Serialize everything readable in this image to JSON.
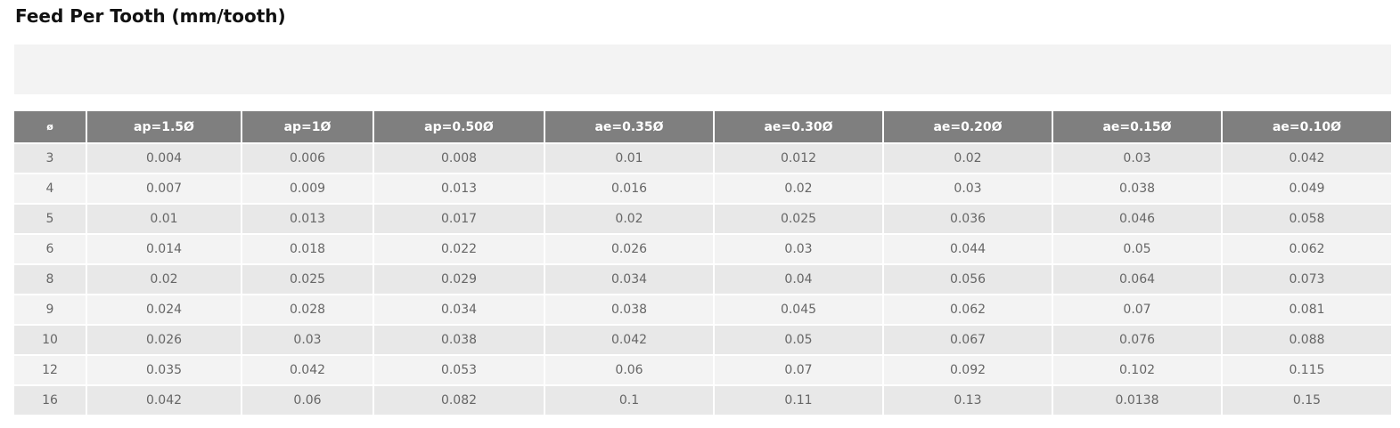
{
  "title": "Feed Per Tooth (mm/tooth)",
  "table": {
    "headers": [
      "ø",
      "ap=1.5Ø",
      "ap=1Ø",
      "ap=0.50Ø",
      "ae=0.35Ø",
      "ae=0.30Ø",
      "ae=0.20Ø",
      "ae=0.15Ø",
      "ae=0.10Ø"
    ],
    "rows": [
      [
        "3",
        "0.004",
        "0.006",
        "0.008",
        "0.01",
        "0.012",
        "0.02",
        "0.03",
        "0.042"
      ],
      [
        "4",
        "0.007",
        "0.009",
        "0.013",
        "0.016",
        "0.02",
        "0.03",
        "0.038",
        "0.049"
      ],
      [
        "5",
        "0.01",
        "0.013",
        "0.017",
        "0.02",
        "0.025",
        "0.036",
        "0.046",
        "0.058"
      ],
      [
        "6",
        "0.014",
        "0.018",
        "0.022",
        "0.026",
        "0.03",
        "0.044",
        "0.05",
        "0.062"
      ],
      [
        "8",
        "0.02",
        "0.025",
        "0.029",
        "0.034",
        "0.04",
        "0.056",
        "0.064",
        "0.073"
      ],
      [
        "9",
        "0.024",
        "0.028",
        "0.034",
        "0.038",
        "0.045",
        "0.062",
        "0.07",
        "0.081"
      ],
      [
        "10",
        "0.026",
        "0.03",
        "0.038",
        "0.042",
        "0.05",
        "0.067",
        "0.076",
        "0.088"
      ],
      [
        "12",
        "0.035",
        "0.042",
        "0.053",
        "0.06",
        "0.07",
        "0.092",
        "0.102",
        "0.115"
      ],
      [
        "16",
        "0.042",
        "0.06",
        "0.082",
        "0.1",
        "0.11",
        "0.13",
        "0.0138",
        "0.15"
      ]
    ]
  }
}
